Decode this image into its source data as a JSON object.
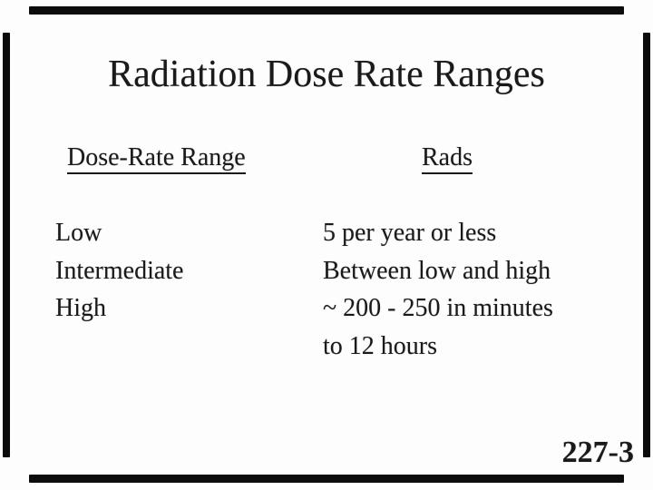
{
  "slide": {
    "title": "Radiation Dose Rate Ranges",
    "table": {
      "headers": [
        {
          "label": "Dose-Rate Range"
        },
        {
          "label": "Rads"
        }
      ],
      "rows": [
        {
          "dose_rate_range": "Low",
          "rads": "5 per year or less"
        },
        {
          "dose_rate_range": "Intermediate",
          "rads": "Between low and high"
        },
        {
          "dose_rate_range": "High",
          "rads": "~ 200 - 250 in minutes to 12 hours",
          "rads_lines": [
            "~ 200 - 250 in minutes",
            "to 12 hours"
          ]
        }
      ]
    },
    "slide_number": "227-3",
    "colors": {
      "background": "#fdfdfd",
      "text": "#1a1a1a",
      "scan_border": "#0c0c0c"
    }
  }
}
